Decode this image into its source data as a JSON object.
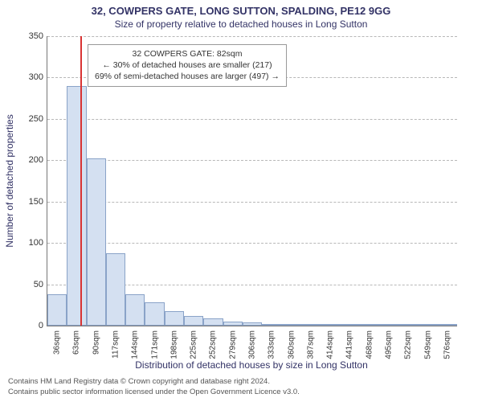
{
  "title_main": "32, COWPERS GATE, LONG SUTTON, SPALDING, PE12 9GG",
  "title_sub": "Size of property relative to detached houses in Long Sutton",
  "chart": {
    "type": "histogram",
    "ylabel": "Number of detached properties",
    "xlabel": "Distribution of detached houses by size in Long Sutton",
    "ylim": [
      0,
      350
    ],
    "yticks": [
      0,
      50,
      100,
      150,
      200,
      250,
      300,
      350
    ],
    "xtick_labels": [
      "36sqm",
      "63sqm",
      "90sqm",
      "117sqm",
      "144sqm",
      "171sqm",
      "198sqm",
      "225sqm",
      "252sqm",
      "279sqm",
      "306sqm",
      "333sqm",
      "360sqm",
      "387sqm",
      "414sqm",
      "441sqm",
      "468sqm",
      "495sqm",
      "522sqm",
      "549sqm",
      "576sqm"
    ],
    "categories": [
      36,
      63,
      90,
      117,
      144,
      171,
      198,
      225,
      252,
      279,
      306,
      333,
      360,
      387,
      414,
      441,
      468,
      495,
      522,
      549,
      576
    ],
    "values": [
      38,
      290,
      202,
      88,
      38,
      28,
      18,
      12,
      9,
      5,
      4,
      0,
      0,
      0,
      0,
      0,
      0,
      0,
      0,
      0,
      0
    ],
    "bar_fill": "#d4e0f1",
    "bar_stroke": "#8aa3c8",
    "grid_color": "#b8b8b8",
    "background_color": "#ffffff",
    "bar_width_ratio": 1.0,
    "marker": {
      "value_sqm": 82,
      "color": "#d93333",
      "label_line1": "32 COWPERS GATE: 82sqm",
      "label_line2": "← 30% of detached houses are smaller (217)",
      "label_line3": "69% of semi-detached houses are larger (497) →"
    }
  },
  "credits": {
    "line1": "Contains HM Land Registry data © Crown copyright and database right 2024.",
    "line2": "Contains public sector information licensed under the Open Government Licence v3.0."
  },
  "style": {
    "title_fontsize": 13,
    "sub_fontsize": 12,
    "tick_fontsize": 10,
    "label_fontsize": 12,
    "text_color": "#333366"
  }
}
